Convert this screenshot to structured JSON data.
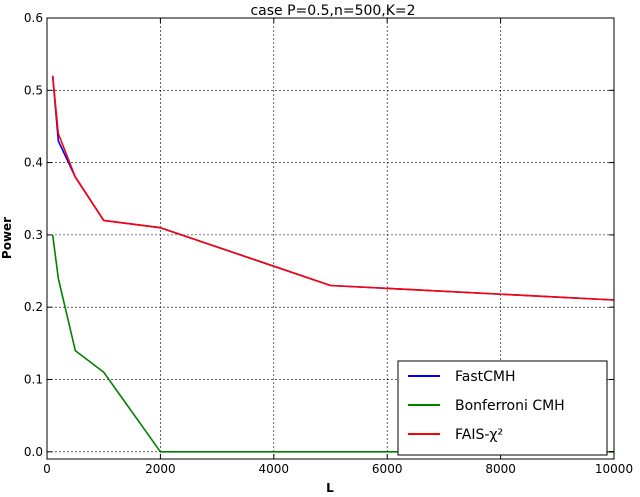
{
  "chart_data": {
    "type": "line",
    "title": "case P=0.5,n=500,K=2",
    "xlabel": "L",
    "ylabel": "Power",
    "xlim": [
      0,
      10000
    ],
    "ylim": [
      -0.01,
      0.6
    ],
    "xticks": [
      0,
      2000,
      4000,
      6000,
      8000,
      10000
    ],
    "xtick_labels": [
      "0",
      "2000",
      "4000",
      "6000",
      "8000",
      "10000"
    ],
    "yticks": [
      0.0,
      0.1,
      0.2,
      0.3,
      0.4,
      0.5,
      0.6
    ],
    "ytick_labels": [
      "0.0",
      "0.1",
      "0.2",
      "0.3",
      "0.4",
      "0.5",
      "0.6"
    ],
    "grid": true,
    "legend_position": "lower-right",
    "series": [
      {
        "name": "FastCMH",
        "color": "#0000ff",
        "x": [
          100,
          200,
          500,
          1000,
          2000,
          5000,
          10000
        ],
        "y": [
          0.52,
          0.43,
          0.38,
          0.32,
          0.31,
          0.23,
          0.21
        ]
      },
      {
        "name": "Bonferroni CMH",
        "color": "#008000",
        "x": [
          100,
          200,
          500,
          1000,
          2000,
          5000,
          10000
        ],
        "y": [
          0.3,
          0.24,
          0.14,
          0.11,
          0.0,
          0.0,
          0.0
        ]
      },
      {
        "name": "FAIS-χ²",
        "color": "#ff0000",
        "x": [
          100,
          200,
          500,
          1000,
          2000,
          5000,
          10000
        ],
        "y": [
          0.52,
          0.44,
          0.38,
          0.32,
          0.31,
          0.23,
          0.21
        ]
      }
    ]
  }
}
